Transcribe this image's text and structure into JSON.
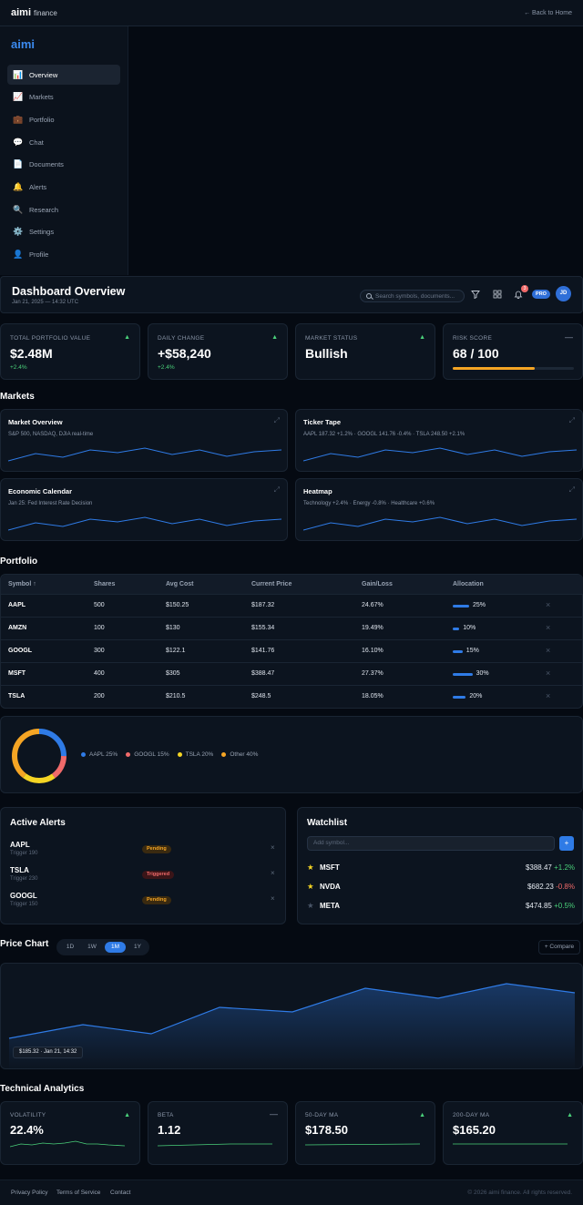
{
  "topbar": {
    "brand_bold": "aimi",
    "brand_light": "finance",
    "back_link": "← Back to Home"
  },
  "sidebar": {
    "logo": "aimi",
    "items": [
      {
        "icon": "📊",
        "label": "Overview",
        "active": true
      },
      {
        "icon": "📈",
        "label": "Markets"
      },
      {
        "icon": "💼",
        "label": "Portfolio"
      },
      {
        "icon": "💬",
        "label": "Chat"
      },
      {
        "icon": "📄",
        "label": "Documents"
      },
      {
        "icon": "🔔",
        "label": "Alerts"
      },
      {
        "icon": "🔍",
        "label": "Research"
      },
      {
        "icon": "⚙️",
        "label": "Settings"
      },
      {
        "icon": "👤",
        "label": "Profile"
      }
    ]
  },
  "header": {
    "title": "Dashboard Overview",
    "date": "Jan 21, 2025 — 14:32 UTC",
    "search_placeholder": "Search symbols, documents...",
    "notification_count": "3",
    "plan_badge": "PRO",
    "avatar_initials": "JD"
  },
  "stats": [
    {
      "label": "TOTAL PORTFOLIO VALUE",
      "value": "$2.48M",
      "change": "+2.4%",
      "trend": "▲"
    },
    {
      "label": "DAILY CHANGE",
      "value": "+$58,240",
      "change": "+2.4%",
      "trend": "▲"
    },
    {
      "label": "MARKET STATUS",
      "value": "Bullish",
      "change": "",
      "trend": "▲"
    },
    {
      "label": "RISK SCORE",
      "value": "68 / 100",
      "change": "",
      "trend": "—",
      "risk_level": 0.68
    }
  ],
  "colors": {
    "accent": "#2f7be6",
    "positive": "#4ad07a",
    "negative": "#f06a6a",
    "warning": "#f5a524"
  },
  "markets": {
    "title": "Markets",
    "cards": [
      {
        "title": "Market Overview",
        "subtitle": "S&P 500, NASDAQ, DJIA real-time"
      },
      {
        "title": "Ticker Tape",
        "subtitle": "AAPL 187.32 +1.2% · GOOGL 141.76 -0.4% · TSLA 248.50 +2.1%"
      },
      {
        "title": "Economic Calendar",
        "subtitle": "Jan 25: Fed Interest Rate Decision"
      },
      {
        "title": "Heatmap",
        "subtitle": "Technology +2.4% · Energy -0.8% · Healthcare +0.6%"
      }
    ]
  },
  "portfolio": {
    "title": "Portfolio",
    "columns": [
      "Symbol ↑",
      "Shares",
      "Avg Cost",
      "Current Price",
      "Gain/Loss",
      "Allocation"
    ],
    "rows": [
      {
        "symbol": "AAPL",
        "shares": "500",
        "avg_cost": "$150.25",
        "price": "$187.32",
        "gain": "24.67%",
        "alloc": "25%",
        "alloc_value": 25
      },
      {
        "symbol": "AMZN",
        "shares": "100",
        "avg_cost": "$130",
        "price": "$155.34",
        "gain": "19.49%",
        "alloc": "10%",
        "alloc_value": 10
      },
      {
        "symbol": "GOOGL",
        "shares": "300",
        "avg_cost": "$122.1",
        "price": "$141.76",
        "gain": "16.10%",
        "alloc": "15%",
        "alloc_value": 15
      },
      {
        "symbol": "MSFT",
        "shares": "400",
        "avg_cost": "$305",
        "price": "$388.47",
        "gain": "27.37%",
        "alloc": "30%",
        "alloc_value": 30
      },
      {
        "symbol": "TSLA",
        "shares": "200",
        "avg_cost": "$210.5",
        "price": "$248.5",
        "gain": "18.05%",
        "alloc": "20%",
        "alloc_value": 20
      }
    ],
    "allocation_legend": [
      {
        "label": "AAPL 25%",
        "color": "#2f7be6",
        "value": 25
      },
      {
        "label": "GOOGL 15%",
        "color": "#f06a6a",
        "value": 15
      },
      {
        "label": "TSLA 20%",
        "color": "#f5d524",
        "value": 20
      },
      {
        "label": "Other 40%",
        "color": "#f5a524",
        "value": 40
      }
    ]
  },
  "alerts": {
    "title": "Active Alerts",
    "items": [
      {
        "symbol": "AAPL",
        "trigger": "Trigger 190",
        "status": "Pending"
      },
      {
        "symbol": "TSLA",
        "trigger": "Trigger 230",
        "status": "Triggered"
      },
      {
        "symbol": "GOOGL",
        "trigger": "Trigger 150",
        "status": "Pending"
      }
    ]
  },
  "watchlist": {
    "title": "Watchlist",
    "input_placeholder": "Add symbol...",
    "add_label": "+",
    "items": [
      {
        "symbol": "MSFT",
        "price": "$388.47",
        "change": "+1.2%",
        "starred": true
      },
      {
        "symbol": "NVDA",
        "price": "$682.23",
        "change": "-0.8%",
        "starred": true
      },
      {
        "symbol": "META",
        "price": "$474.85",
        "change": "+0.5%",
        "starred": false
      }
    ]
  },
  "price_chart": {
    "title": "Price Chart",
    "ranges": [
      "1D",
      "1W",
      "1M",
      "1Y"
    ],
    "active_range": "1M",
    "compare_label": "+ Compare",
    "tooltip": "$185.32 · Jan 21, 14:32"
  },
  "technical": {
    "title": "Technical Analytics",
    "cards": [
      {
        "label": "VOLATILITY",
        "value": "22.4%",
        "trend": "▲"
      },
      {
        "label": "BETA",
        "value": "1.12",
        "trend": "—"
      },
      {
        "label": "50-DAY MA",
        "value": "$178.50",
        "trend": "▲"
      },
      {
        "label": "200-DAY MA",
        "value": "$165.20",
        "trend": "▲"
      }
    ]
  },
  "footer": {
    "links": [
      "Privacy Policy",
      "Terms of Service",
      "Contact"
    ],
    "copyright": "© 2026 aimi finance. All rights reserved."
  }
}
